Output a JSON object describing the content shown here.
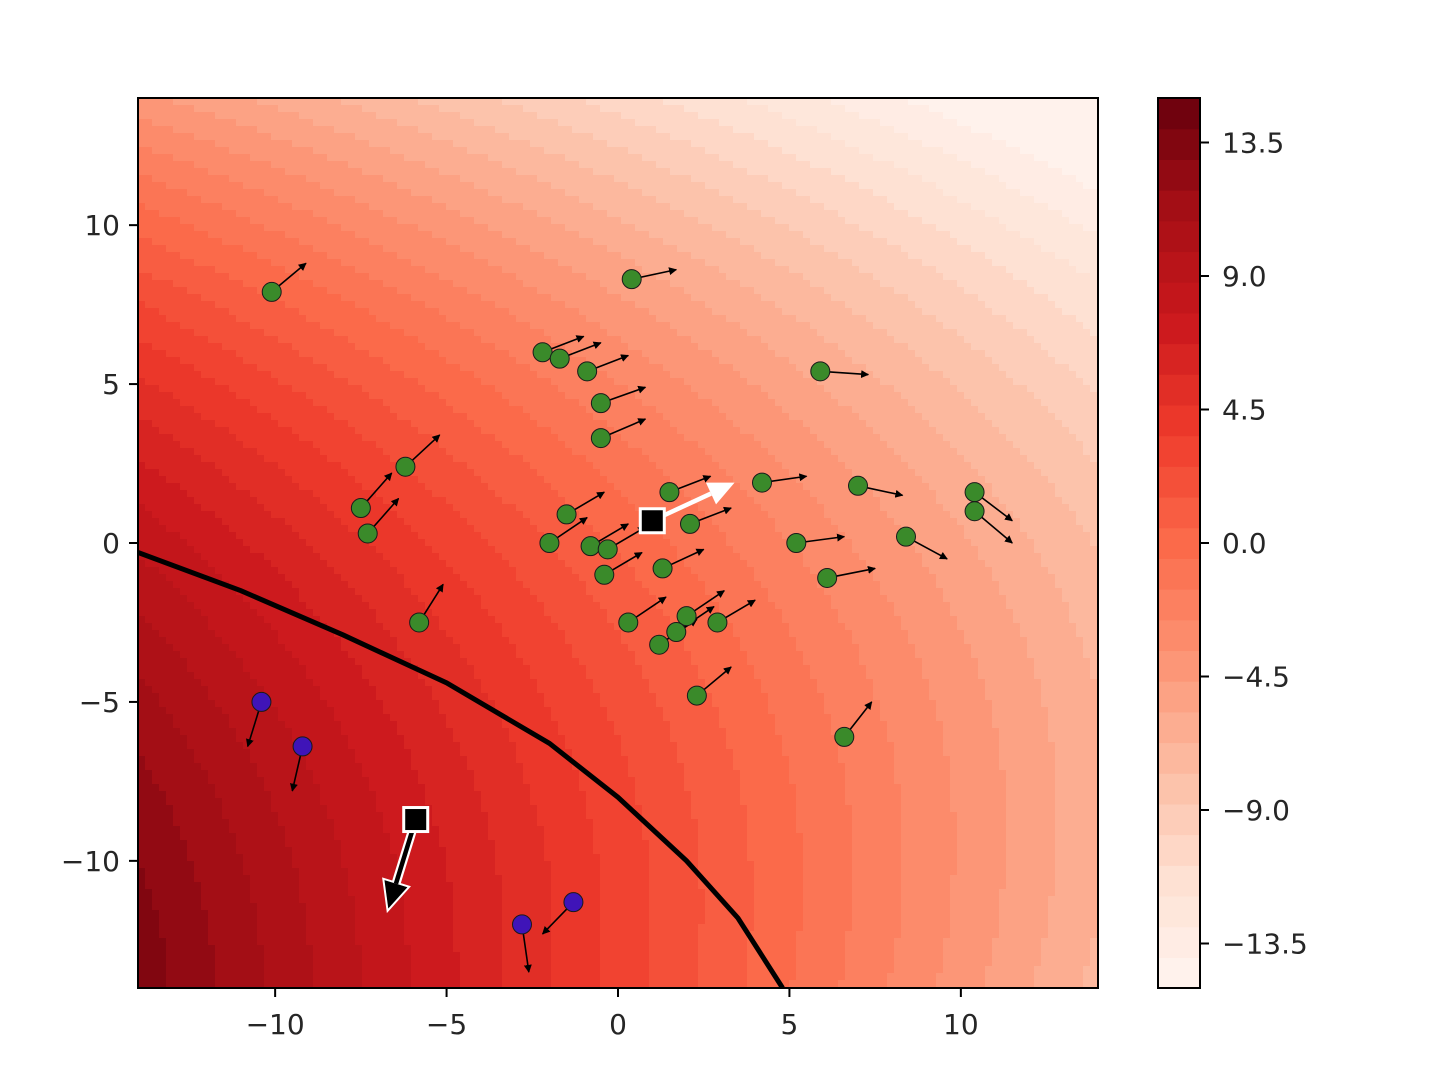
{
  "chart_data": {
    "type": "scatter",
    "title": "",
    "xlabel": "",
    "ylabel": "",
    "xlim": [
      -14,
      14
    ],
    "ylim": [
      -14,
      14
    ],
    "x_ticks": [
      -10,
      -5,
      0,
      5,
      10
    ],
    "x_tick_labels": [
      "−10",
      "−5",
      "0",
      "5",
      "10"
    ],
    "y_ticks": [
      -10,
      -5,
      0,
      5,
      10
    ],
    "y_tick_labels": [
      "−10",
      "−5",
      "0",
      "5",
      "10"
    ],
    "grid": false,
    "background": {
      "type": "filled-contour",
      "colormap": "Reds",
      "levels": 29,
      "vmin": -15,
      "vmax": 15,
      "note_colors": [
        "#fff5f0",
        "#fee0d2",
        "#fcbba1",
        "#fc9272",
        "#fb6a4a",
        "#ef3b2c",
        "#cb181d",
        "#a50f15",
        "#67000d"
      ]
    },
    "decision_boundary": {
      "color": "#000000",
      "points": [
        [
          -14,
          -0.3
        ],
        [
          -11,
          -1.5
        ],
        [
          -8,
          -2.9
        ],
        [
          -5,
          -4.4
        ],
        [
          -2,
          -6.3
        ],
        [
          0,
          -8.0
        ],
        [
          2,
          -10.0
        ],
        [
          3.5,
          -11.8
        ],
        [
          4.8,
          -14
        ]
      ]
    },
    "colorbar": {
      "ticks": [
        13.5,
        9.0,
        4.5,
        0.0,
        -4.5,
        -9.0,
        -13.5
      ],
      "tick_labels": [
        "13.5",
        "9.0",
        "4.5",
        "0.0",
        "−4.5",
        "−9.0",
        "−13.5"
      ],
      "vmin": -15,
      "vmax": 15,
      "levels": 29
    },
    "series": [
      {
        "marker": "circle",
        "color": "#3a8a2a",
        "points": [
          {
            "x": -10.1,
            "y": 7.9,
            "dx": 1.0,
            "dy": 0.9
          },
          {
            "x": 0.4,
            "y": 8.3,
            "dx": 1.3,
            "dy": 0.3
          },
          {
            "x": -2.2,
            "y": 6.0,
            "dx": 1.2,
            "dy": 0.5
          },
          {
            "x": -1.7,
            "y": 5.8,
            "dx": 1.2,
            "dy": 0.5
          },
          {
            "x": -0.9,
            "y": 5.4,
            "dx": 1.2,
            "dy": 0.5
          },
          {
            "x": -0.5,
            "y": 4.4,
            "dx": 1.3,
            "dy": 0.5
          },
          {
            "x": -0.5,
            "y": 3.3,
            "dx": 1.3,
            "dy": 0.6
          },
          {
            "x": 5.9,
            "y": 5.4,
            "dx": 1.4,
            "dy": -0.1
          },
          {
            "x": -6.2,
            "y": 2.4,
            "dx": 1.0,
            "dy": 1.0
          },
          {
            "x": -7.5,
            "y": 1.1,
            "dx": 0.9,
            "dy": 1.1
          },
          {
            "x": -7.3,
            "y": 0.3,
            "dx": 0.9,
            "dy": 1.1
          },
          {
            "x": -1.5,
            "y": 0.9,
            "dx": 1.1,
            "dy": 0.7
          },
          {
            "x": -2.0,
            "y": 0.0,
            "dx": 1.1,
            "dy": 0.8
          },
          {
            "x": -0.8,
            "y": -0.1,
            "dx": 1.1,
            "dy": 0.7
          },
          {
            "x": -0.3,
            "y": -0.2,
            "dx": 1.1,
            "dy": 0.7
          },
          {
            "x": -0.4,
            "y": -1.0,
            "dx": 1.1,
            "dy": 0.7
          },
          {
            "x": 1.5,
            "y": 1.6,
            "dx": 1.2,
            "dy": 0.5
          },
          {
            "x": 2.1,
            "y": 0.6,
            "dx": 1.2,
            "dy": 0.5
          },
          {
            "x": 4.2,
            "y": 1.9,
            "dx": 1.3,
            "dy": 0.2
          },
          {
            "x": 7.0,
            "y": 1.8,
            "dx": 1.3,
            "dy": -0.3
          },
          {
            "x": 5.2,
            "y": 0.0,
            "dx": 1.4,
            "dy": 0.2
          },
          {
            "x": 8.4,
            "y": 0.2,
            "dx": 1.2,
            "dy": -0.7
          },
          {
            "x": 10.4,
            "y": 1.6,
            "dx": 1.1,
            "dy": -0.9
          },
          {
            "x": 10.4,
            "y": 1.0,
            "dx": 1.1,
            "dy": -1.0
          },
          {
            "x": 6.1,
            "y": -1.1,
            "dx": 1.4,
            "dy": 0.3
          },
          {
            "x": 1.3,
            "y": -0.8,
            "dx": 1.2,
            "dy": 0.6
          },
          {
            "x": -5.8,
            "y": -2.5,
            "dx": 0.7,
            "dy": 1.2
          },
          {
            "x": 0.3,
            "y": -2.5,
            "dx": 1.1,
            "dy": 0.8
          },
          {
            "x": 2.0,
            "y": -2.3,
            "dx": 1.1,
            "dy": 0.8
          },
          {
            "x": 2.9,
            "y": -2.5,
            "dx": 1.1,
            "dy": 0.7
          },
          {
            "x": 1.7,
            "y": -2.8,
            "dx": 1.1,
            "dy": 0.8
          },
          {
            "x": 1.2,
            "y": -3.2,
            "dx": 1.1,
            "dy": 0.8
          },
          {
            "x": 2.3,
            "y": -4.8,
            "dx": 1.0,
            "dy": 0.9
          },
          {
            "x": 6.6,
            "y": -6.1,
            "dx": 0.8,
            "dy": 1.1
          }
        ]
      },
      {
        "marker": "circle",
        "color": "#3f14b8",
        "points": [
          {
            "x": -10.4,
            "y": -5.0,
            "dx": -0.4,
            "dy": -1.4
          },
          {
            "x": -9.2,
            "y": -6.4,
            "dx": -0.3,
            "dy": -1.4
          },
          {
            "x": -2.8,
            "y": -12.0,
            "dx": 0.2,
            "dy": -1.5
          },
          {
            "x": -1.3,
            "y": -11.3,
            "dx": -0.9,
            "dy": -1.0
          }
        ]
      }
    ],
    "square_markers": [
      {
        "x": 1.0,
        "y": 0.7,
        "marker_color": "#000000",
        "arrow_color": "#ffffff",
        "dx": 2.4,
        "dy": 1.2
      },
      {
        "x": -5.9,
        "y": -8.7,
        "marker_color": "#000000",
        "arrow_color": "#000000",
        "dx": -0.8,
        "dy": -2.8
      }
    ]
  }
}
